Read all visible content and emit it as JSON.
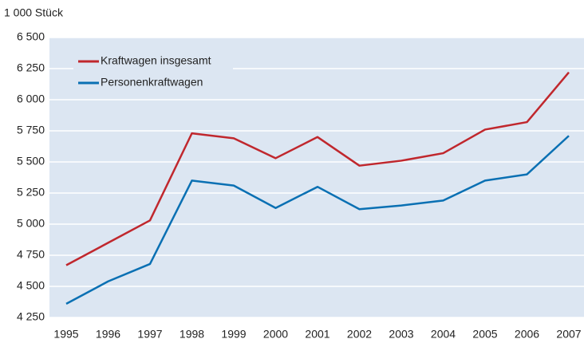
{
  "chart_data": {
    "type": "line",
    "y_label": "1 000 Stück",
    "categories": [
      "1995",
      "1996",
      "1997",
      "1998",
      "1999",
      "2000",
      "2001",
      "2002",
      "2003",
      "2004",
      "2005",
      "2006",
      "2007"
    ],
    "series": [
      {
        "name": "Kraftwagen insgesamt",
        "color": "#c0272d",
        "values": [
          4670,
          4850,
          5030,
          5730,
          5690,
          5530,
          5700,
          5470,
          5510,
          5570,
          5760,
          5820,
          6220
        ]
      },
      {
        "name": "Personenkraftwagen",
        "color": "#0a70b3",
        "values": [
          4360,
          4540,
          4680,
          5350,
          5310,
          5130,
          5300,
          5120,
          5150,
          5190,
          5350,
          5400,
          5710
        ]
      }
    ],
    "ylim": [
      4250,
      6500
    ],
    "yticks": [
      {
        "value": 4250,
        "label": "4 250"
      },
      {
        "value": 4500,
        "label": "4 500"
      },
      {
        "value": 4750,
        "label": "4 750"
      },
      {
        "value": 5000,
        "label": "5 000"
      },
      {
        "value": 5250,
        "label": "5 250"
      },
      {
        "value": 5500,
        "label": "5 500"
      },
      {
        "value": 5750,
        "label": "5 750"
      },
      {
        "value": 6000,
        "label": "6 000"
      },
      {
        "value": 6250,
        "label": "6 250"
      },
      {
        "value": 6500,
        "label": "6 500"
      }
    ],
    "grid": true,
    "legend": "upper left",
    "background": "#dce6f2"
  }
}
